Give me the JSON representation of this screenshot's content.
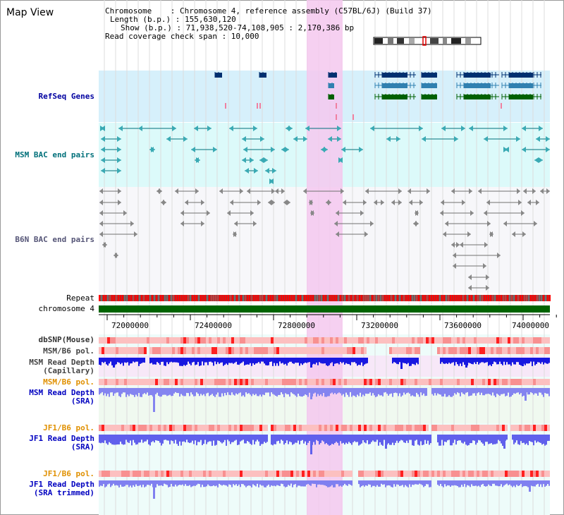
{
  "panel_title": "Map View",
  "info": {
    "chromosome": "Chromosome    : Chromosome 4, reference assembly (C57BL/6J) (Build 37)",
    "length": "Length (b.p.) : 155,630,120",
    "show": "Show (b.p.) : 71,938,520-74,108,905 : 2,170,386 bp",
    "coverage": "Read coverage check span : 10,000"
  },
  "tracks": {
    "refseq": "RefSeq Genes",
    "msm_bac": "MSM BAC end pairs",
    "b6n_bac": "B6N BAC end pairs",
    "repeat": "Repeat",
    "chromosome": "chromosome 4",
    "dbsnp": "dbSNP(Mouse)",
    "msm_pol": "MSM/B6 pol.",
    "msm_cap_1": "MSM Read Depth",
    "msm_cap_2": "(Capillary)",
    "msm_pol2": "MSM/B6 pol.",
    "msm_sra_1": "MSM Read Depth",
    "msm_sra_2": "(SRA)",
    "jf1_pol": "JF1/B6 pol.",
    "jf1_sra_1": "JF1 Read Depth",
    "jf1_sra_2": "(SRA)",
    "jf1_pol2": "JF1/B6 pol.",
    "jf1_trim_1": "JF1 Read Depth",
    "jf1_trim_2": "(SRA trimmed)"
  },
  "axis_ticks": [
    "72000000",
    "72400000",
    "72800000",
    "73200000",
    "73600000",
    "74000000"
  ],
  "colors": {
    "refseq_blue": "#0000a0",
    "msm_teal": "#00707a",
    "pol_orange": "#e09000",
    "depth_blue": "#0000c0",
    "highlight": "#f5c8ee",
    "chromosome_green": "#006400"
  }
}
